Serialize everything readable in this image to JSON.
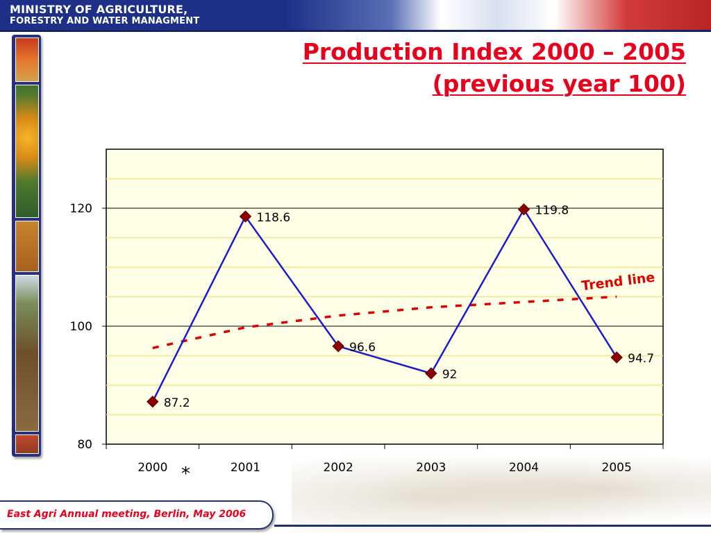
{
  "header": {
    "ministry_line1": "MINISTRY OF AGRICULTURE,",
    "ministry_line2": "FORESTRY AND WATER MANAGMENT"
  },
  "title": "Production Index 2000 – 2005 (previous year 100)",
  "footer": {
    "text": "East Agri Annual meeting, Berlin, May 2006"
  },
  "note": {
    "asterisk": "*"
  },
  "colors": {
    "title": "#e8001c",
    "series_line": "#1a1ad0",
    "marker": "#8b0000",
    "trend": "#e00000",
    "plot_bg": "#ffffe8",
    "gridline": "#f0e68c"
  },
  "chart_data": {
    "type": "line",
    "categories": [
      "2000",
      "2001",
      "2002",
      "2003",
      "2004",
      "2005"
    ],
    "series": [
      {
        "values": [
          87.2,
          118.6,
          96.6,
          92,
          119.8,
          94.7
        ],
        "data_labels": [
          "87.2",
          "118.6",
          "96.6",
          "92",
          "119.8",
          "94.7"
        ]
      }
    ],
    "trend_line": {
      "label": "Trend line",
      "values": [
        96.3,
        99.8,
        101.8,
        103.2,
        104.1,
        105.0
      ]
    },
    "y_ticks": [
      "80",
      "100",
      "120"
    ],
    "ylim": [
      80,
      130
    ],
    "y_minor_step": 5,
    "grid": true,
    "xlabel": "",
    "ylabel": ""
  }
}
